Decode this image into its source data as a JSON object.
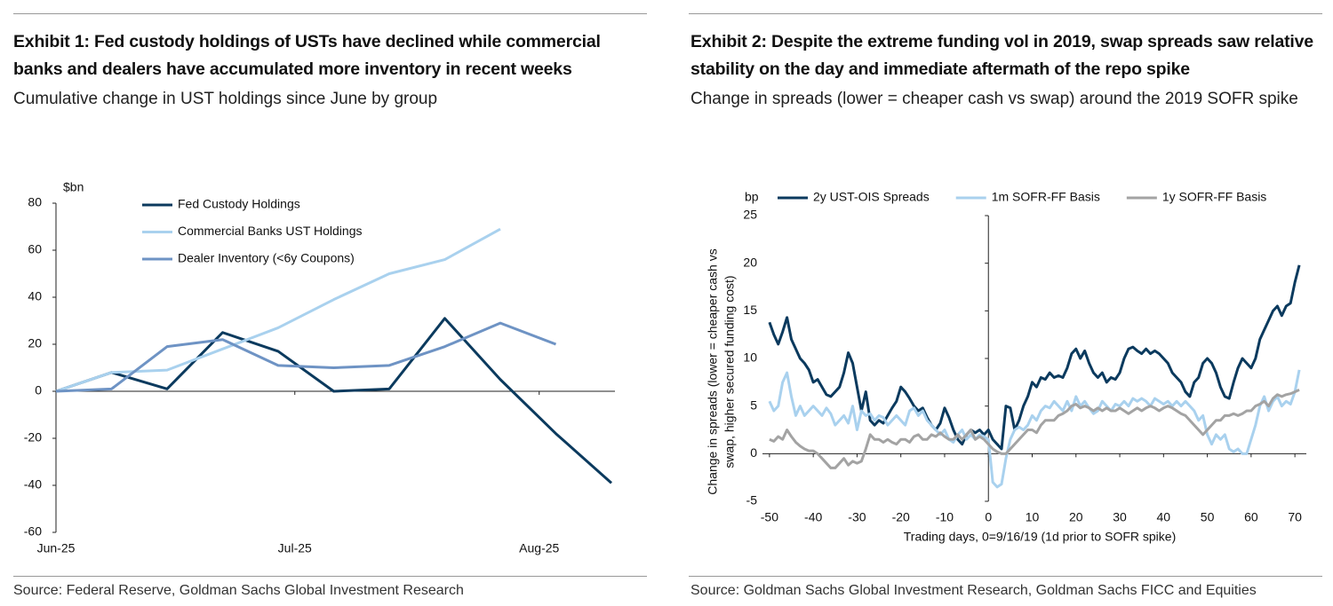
{
  "chart_data": [
    {
      "type": "line",
      "title": "Exhibit 1: Fed custody holdings of USTs have declined while commercial banks and dealers have accumulated more inventory in recent weeks",
      "subtitle": "Cumulative change in UST holdings since June by group",
      "source": "Source: Federal Reserve, Goldman Sachs Global Investment Research",
      "y_unit": "$bn",
      "legend": "upper left",
      "x": [
        0,
        1,
        2,
        3,
        4,
        5,
        6,
        7,
        8,
        9,
        10
      ],
      "xlim": [
        0,
        10
      ],
      "xticks": [
        {
          "value": 0,
          "label": "Jun-25"
        },
        {
          "value": 4.3,
          "label": "Jul-25"
        },
        {
          "value": 8.7,
          "label": "Aug-25"
        }
      ],
      "ylim": [
        -60,
        80
      ],
      "yticks": [
        -60,
        -40,
        -20,
        0,
        20,
        40,
        60,
        80
      ],
      "series": [
        {
          "name": "Fed Custody Holdings",
          "color": "#0b3a5e",
          "values": [
            0,
            8,
            1,
            25,
            17,
            0,
            1,
            31,
            5,
            -18,
            -39
          ]
        },
        {
          "name": "Commercial Banks UST Holdings",
          "color": "#a9d1ee",
          "values": [
            0,
            8,
            9,
            18,
            27,
            39,
            50,
            56,
            69,
            null,
            null
          ]
        },
        {
          "name": "Dealer Inventory (<6y Coupons)",
          "color": "#6e93c4",
          "values": [
            0,
            1,
            19,
            22,
            11,
            10,
            11,
            19,
            29,
            20,
            null
          ]
        }
      ]
    },
    {
      "type": "line",
      "title": "Exhibit 2: Despite the extreme funding vol in 2019, swap spreads saw relative stability on the day and immediate aftermath of the repo spike",
      "subtitle": "Change in spreads (lower = cheaper cash vs swap) around the 2019 SOFR spike",
      "source": "Source: Goldman Sachs Global Investment Research, Goldman Sachs FICC and Equities",
      "y_unit": "bp",
      "legend": "top",
      "xlabel": "Trading days, 0=9/16/19 (1d prior to SOFR spike)",
      "ylabel": [
        "Change in spreads (lower = cheaper cash vs",
        "swap, higher secured funding cost)"
      ],
      "x": [
        -50,
        -49,
        -48,
        -47,
        -46,
        -45,
        -44,
        -43,
        -42,
        -41,
        -40,
        -39,
        -38,
        -37,
        -36,
        -35,
        -34,
        -33,
        -32,
        -31,
        -30,
        -29,
        -28,
        -27,
        -26,
        -25,
        -24,
        -23,
        -22,
        -21,
        -20,
        -19,
        -18,
        -17,
        -16,
        -15,
        -14,
        -13,
        -12,
        -11,
        -10,
        -9,
        -8,
        -7,
        -6,
        -5,
        -4,
        -3,
        -2,
        -1,
        0,
        1,
        2,
        3,
        4,
        5,
        6,
        7,
        8,
        9,
        10,
        11,
        12,
        13,
        14,
        15,
        16,
        17,
        18,
        19,
        20,
        21,
        22,
        23,
        24,
        25,
        26,
        27,
        28,
        29,
        30,
        31,
        32,
        33,
        34,
        35,
        36,
        37,
        38,
        39,
        40,
        41,
        42,
        43,
        44,
        45,
        46,
        47,
        48,
        49,
        50,
        51,
        52,
        53,
        54,
        55,
        56,
        57,
        58,
        59,
        60,
        61,
        62,
        63,
        64,
        65,
        66,
        67,
        68,
        69,
        70,
        71
      ],
      "xlim": [
        -51.6,
        71.8
      ],
      "xticks": [
        -50,
        -40,
        -30,
        -20,
        -10,
        0,
        10,
        20,
        30,
        40,
        50,
        60,
        70
      ],
      "ylim": [
        -5,
        25
      ],
      "yticks": [
        -5,
        0,
        5,
        10,
        15,
        20,
        25
      ],
      "series": [
        {
          "name": "2y UST-OIS Spreads",
          "color": "#0b3a5e",
          "values": [
            13.8,
            12.5,
            11.5,
            12.8,
            14.3,
            12.0,
            11.0,
            10.0,
            9.5,
            8.8,
            7.5,
            7.8,
            7.0,
            6.2,
            6.0,
            6.5,
            7.0,
            8.5,
            10.6,
            9.5,
            7.0,
            4.5,
            6.5,
            3.5,
            3.0,
            3.5,
            3.2,
            4.0,
            4.8,
            5.5,
            7.0,
            6.5,
            5.8,
            5.0,
            4.5,
            4.8,
            3.8,
            3.0,
            2.5,
            3.2,
            4.8,
            3.8,
            2.5,
            1.5,
            1.0,
            2.0,
            2.5,
            2.2,
            2.5,
            2.0,
            2.5,
            1.5,
            1.0,
            0.5,
            5.0,
            4.8,
            2.5,
            3.5,
            5.0,
            6.0,
            7.5,
            7.0,
            8.0,
            7.8,
            8.5,
            8.0,
            8.2,
            8.0,
            9.0,
            10.5,
            11.0,
            10.0,
            10.8,
            9.5,
            8.5,
            8.0,
            8.5,
            7.5,
            8.0,
            7.8,
            8.5,
            10.0,
            11.0,
            11.2,
            10.8,
            10.5,
            11.0,
            10.5,
            10.8,
            10.5,
            10.0,
            9.5,
            8.5,
            8.0,
            7.5,
            6.5,
            6.0,
            7.5,
            8.0,
            9.5,
            10.0,
            9.5,
            8.5,
            7.0,
            6.0,
            5.8,
            7.5,
            9.0,
            10.0,
            9.5,
            9.0,
            10.0,
            12.0,
            13.0,
            14.0,
            15.0,
            15.5,
            14.5,
            15.5,
            15.8,
            18.0,
            19.8
          ]
        },
        {
          "name": "1m SOFR-FF Basis",
          "color": "#a9d1ee",
          "values": [
            5.5,
            4.5,
            5.0,
            7.5,
            8.5,
            6.0,
            4.0,
            5.0,
            4.0,
            4.5,
            5.0,
            4.5,
            4.0,
            4.8,
            4.2,
            3.0,
            3.5,
            4.0,
            3.2,
            5.0,
            2.5,
            4.5,
            4.0,
            4.2,
            3.5,
            4.0,
            3.8,
            3.0,
            3.5,
            4.0,
            3.5,
            3.0,
            4.5,
            4.8,
            4.0,
            4.5,
            3.5,
            3.0,
            2.5,
            2.0,
            2.5,
            1.5,
            1.2,
            2.0,
            2.5,
            1.5,
            2.0,
            1.5,
            2.0,
            1.8,
            1.5,
            -3.0,
            -3.5,
            -3.2,
            -0.5,
            1.5,
            2.5,
            2.8,
            2.5,
            3.0,
            4.0,
            3.5,
            4.5,
            5.0,
            4.8,
            5.5,
            5.0,
            4.5,
            5.5,
            4.5,
            6.0,
            5.0,
            5.5,
            4.8,
            4.2,
            4.5,
            5.5,
            5.0,
            4.5,
            5.2,
            5.0,
            5.5,
            5.0,
            5.8,
            5.5,
            5.8,
            5.5,
            5.0,
            5.8,
            5.5,
            5.2,
            5.5,
            5.0,
            5.5,
            5.0,
            5.5,
            5.0,
            4.5,
            3.5,
            4.0,
            2.0,
            1.0,
            2.0,
            1.5,
            2.0,
            0.5,
            0.2,
            0.5,
            0.0,
            0.0,
            1.5,
            3.0,
            5.0,
            6.0,
            4.5,
            5.5,
            6.0,
            5.0,
            5.5,
            5.2,
            6.5,
            8.8
          ]
        },
        {
          "name": "1y SOFR-FF Basis",
          "color": "#a3a3a3",
          "values": [
            1.5,
            1.3,
            1.8,
            1.5,
            2.5,
            1.8,
            1.2,
            0.8,
            0.5,
            0.3,
            0.3,
            0.0,
            -0.5,
            -1.0,
            -1.5,
            -1.5,
            -1.0,
            -0.5,
            -1.2,
            -0.8,
            -1.0,
            -0.8,
            0.5,
            2.0,
            1.5,
            1.5,
            1.2,
            1.5,
            1.2,
            1.0,
            1.5,
            1.5,
            1.2,
            1.8,
            2.0,
            1.5,
            1.5,
            2.0,
            1.8,
            2.2,
            1.8,
            1.5,
            1.5,
            2.0,
            1.5,
            2.0,
            2.5,
            1.5,
            1.8,
            1.5,
            1.0,
            0.5,
            0.2,
            0.0,
            0.0,
            0.5,
            1.0,
            1.5,
            2.0,
            2.5,
            2.5,
            2.2,
            3.0,
            3.5,
            3.5,
            3.5,
            4.0,
            4.2,
            4.5,
            5.0,
            5.2,
            4.8,
            5.0,
            4.8,
            4.5,
            4.8,
            4.5,
            4.8,
            4.5,
            4.5,
            4.8,
            4.5,
            4.2,
            4.5,
            4.8,
            4.5,
            4.8,
            5.0,
            4.8,
            4.5,
            4.8,
            5.0,
            4.8,
            4.5,
            4.2,
            4.0,
            3.5,
            3.0,
            2.5,
            2.0,
            2.5,
            3.0,
            3.5,
            3.5,
            4.0,
            4.0,
            4.2,
            4.0,
            4.2,
            4.5,
            4.5,
            5.0,
            5.2,
            5.5,
            5.0,
            5.8,
            6.2,
            6.0,
            6.2,
            6.3,
            6.5,
            6.7
          ]
        }
      ]
    }
  ]
}
